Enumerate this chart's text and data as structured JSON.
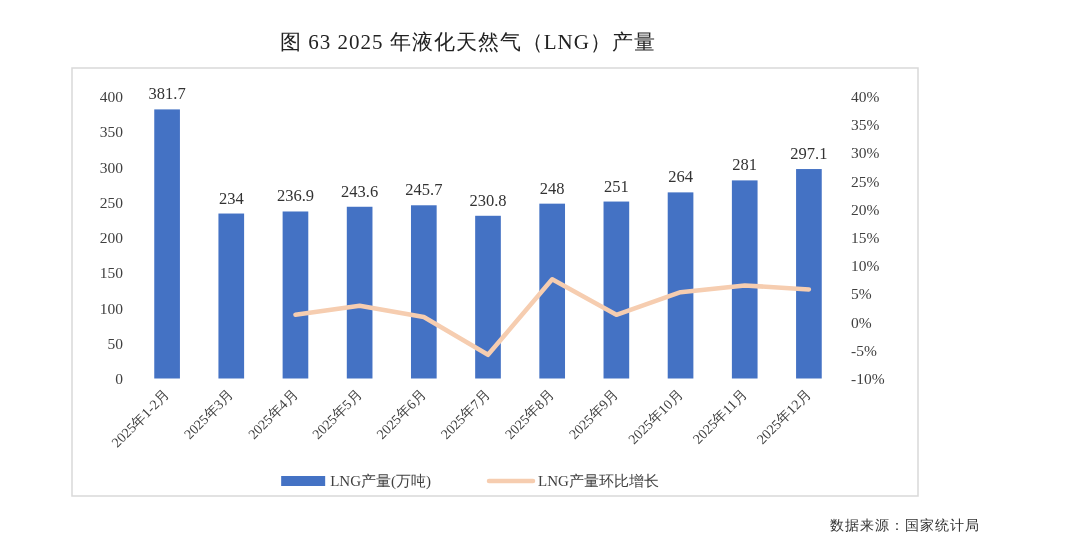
{
  "chart_data": {
    "type": "bar",
    "title": "图 63 2025 年液化天然气（LNG）产量",
    "categories": [
      "2025年1-2月",
      "2025年3月",
      "2025年4月",
      "2025年5月",
      "2025年6月",
      "2025年7月",
      "2025年8月",
      "2025年9月",
      "2025年10月",
      "2025年11月",
      "2025年12月"
    ],
    "series": [
      {
        "name": "LNG产量(万吨)",
        "color": "#4472c4",
        "values": [
          381.7,
          234,
          236.9,
          243.6,
          245.7,
          230.8,
          248,
          251,
          264,
          281,
          297.1
        ],
        "value_labels": [
          "381.7",
          "234",
          "236.9",
          "243.6",
          "245.7",
          "230.8",
          "248",
          "251",
          "264",
          "281",
          "297.1"
        ]
      },
      {
        "name": "LNG产量环比增长",
        "type": "line",
        "axis": "y2",
        "color": "#f6cdb0",
        "values": [
          null,
          null,
          1.3,
          2.9,
          0.9,
          -5.8,
          7.6,
          1.3,
          5.3,
          6.5,
          5.8
        ]
      }
    ],
    "ylim": [
      0,
      400
    ],
    "yticks": [
      0,
      50,
      100,
      150,
      200,
      250,
      300,
      350,
      400
    ],
    "y2lim": [
      -10,
      40
    ],
    "y2ticks": [
      {
        "value": -10,
        "label": "-10%"
      },
      {
        "value": -5,
        "label": "-5%"
      },
      {
        "value": 0,
        "label": "0%"
      },
      {
        "value": 5,
        "label": "5%"
      },
      {
        "value": 10,
        "label": "10%"
      },
      {
        "value": 15,
        "label": "15%"
      },
      {
        "value": 20,
        "label": "20%"
      },
      {
        "value": 25,
        "label": "25%"
      },
      {
        "value": 30,
        "label": "30%"
      },
      {
        "value": 35,
        "label": "35%"
      },
      {
        "value": 40,
        "label": "40%"
      }
    ],
    "legend": "bottom",
    "annotations": [
      "数据来源：国家统计局"
    ]
  }
}
